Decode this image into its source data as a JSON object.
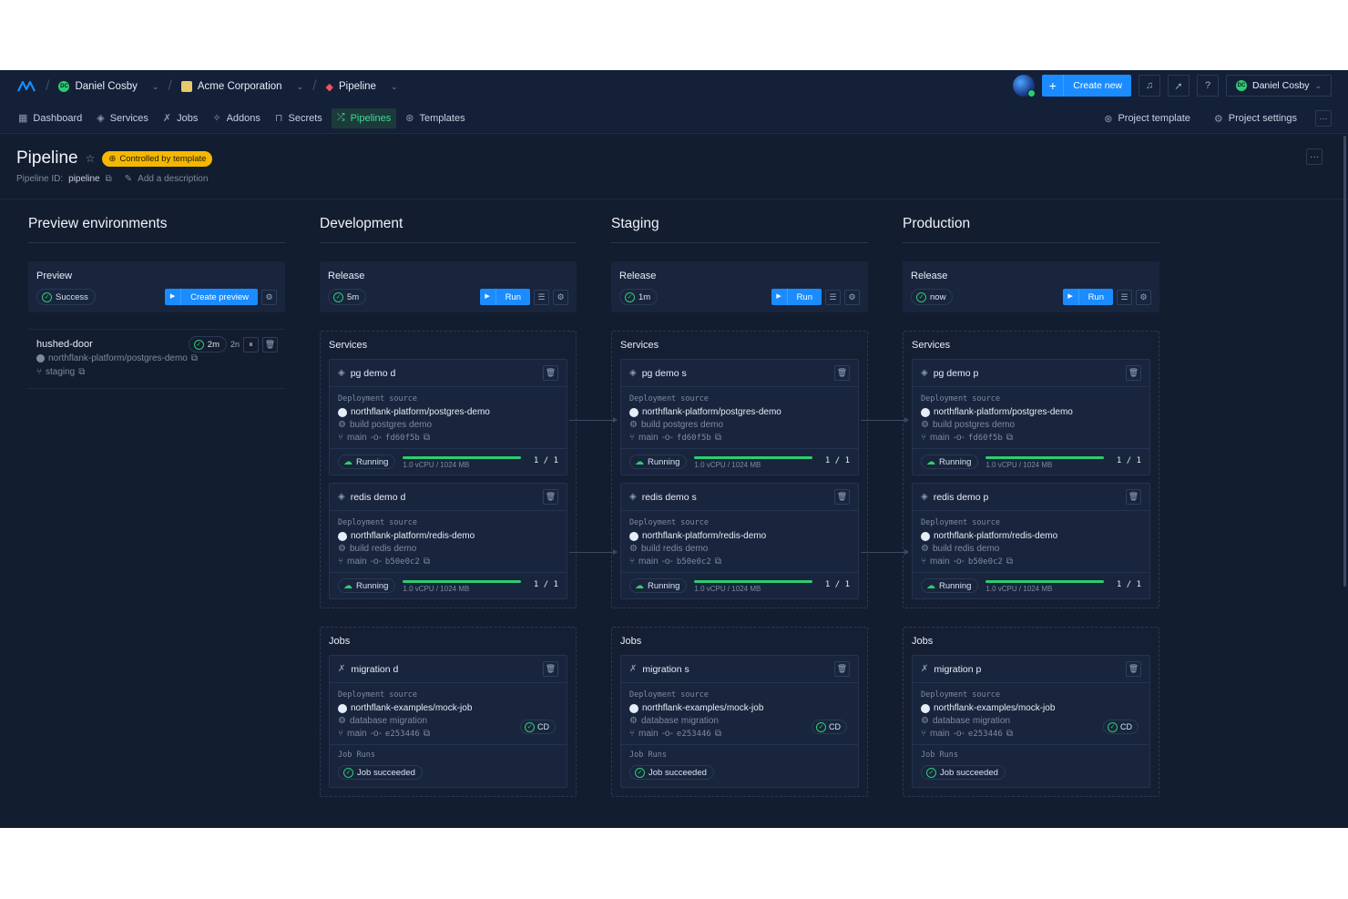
{
  "topbar": {
    "user": "Daniel Cosby",
    "user_initials": "DC",
    "team": "Acme Corporation",
    "project": "Pipeline",
    "create_new": "Create new",
    "account": "Daniel Cosby",
    "brand_color": "#1a8cff"
  },
  "nav": {
    "items": [
      {
        "label": "Dashboard",
        "icon": "grid-icon"
      },
      {
        "label": "Services",
        "icon": "layers-icon"
      },
      {
        "label": "Jobs",
        "icon": "runner-icon"
      },
      {
        "label": "Addons",
        "icon": "puzzle-icon"
      },
      {
        "label": "Secrets",
        "icon": "lock-icon"
      },
      {
        "label": "Pipelines",
        "icon": "shuffle-icon"
      },
      {
        "label": "Templates",
        "icon": "template-icon"
      }
    ],
    "project_template": "Project template",
    "project_settings": "Project settings"
  },
  "header": {
    "title": "Pipeline",
    "badge": "Controlled by template",
    "pipeline_id_label": "Pipeline ID:",
    "pipeline_id": "pipeline",
    "add_description": "Add a description"
  },
  "preview": {
    "title": "Preview environments",
    "release_title": "Preview",
    "status": "Success",
    "create_preview": "Create preview",
    "env": {
      "name": "hushed-door",
      "age": "2m",
      "age2": "2n",
      "repo": "northflank-platform/postgres-demo",
      "branch": "staging"
    }
  },
  "stages": [
    {
      "title": "Development",
      "release_title": "Release",
      "release_age": "5m",
      "run_label": "Run",
      "services_title": "Services",
      "services": [
        {
          "name": "pg demo d",
          "source_label": "Deployment source",
          "repo": "northflank-platform/postgres-demo",
          "build": "build postgres demo",
          "branch": "main",
          "commit": "fd60f5b",
          "status": "Running",
          "resources": "1.0 vCPU / 1024 MB",
          "replicas": "1 / 1",
          "usage": 1.0
        },
        {
          "name": "redis demo d",
          "source_label": "Deployment source",
          "repo": "northflank-platform/redis-demo",
          "build": "build redis demo",
          "branch": "main",
          "commit": "b50e0c2",
          "status": "Running",
          "resources": "1.0 vCPU / 1024 MB",
          "replicas": "1 / 1",
          "usage": 1.0
        }
      ],
      "jobs_title": "Jobs",
      "job": {
        "name": "migration d",
        "source_label": "Deployment source",
        "repo": "northflank-examples/mock-job",
        "build": "database migration",
        "cd": "CD",
        "branch": "main",
        "commit": "e253446",
        "runs_label": "Job Runs",
        "run_status": "Job succeeded"
      }
    },
    {
      "title": "Staging",
      "release_title": "Release",
      "release_age": "1m",
      "run_label": "Run",
      "services_title": "Services",
      "services": [
        {
          "name": "pg demo s",
          "source_label": "Deployment source",
          "repo": "northflank-platform/postgres-demo",
          "build": "build postgres demo",
          "branch": "main",
          "commit": "fd60f5b",
          "status": "Running",
          "resources": "1.0 vCPU / 1024 MB",
          "replicas": "1 / 1",
          "usage": 1.0
        },
        {
          "name": "redis demo s",
          "source_label": "Deployment source",
          "repo": "northflank-platform/redis-demo",
          "build": "build redis demo",
          "branch": "main",
          "commit": "b50e0c2",
          "status": "Running",
          "resources": "1.0 vCPU / 1024 MB",
          "replicas": "1 / 1",
          "usage": 1.0
        }
      ],
      "jobs_title": "Jobs",
      "job": {
        "name": "migration s",
        "source_label": "Deployment source",
        "repo": "northflank-examples/mock-job",
        "build": "database migration",
        "cd": "CD",
        "branch": "main",
        "commit": "e253446",
        "runs_label": "Job Runs",
        "run_status": "Job succeeded"
      }
    },
    {
      "title": "Production",
      "release_title": "Release",
      "release_age": "now",
      "run_label": "Run",
      "services_title": "Services",
      "services": [
        {
          "name": "pg demo p",
          "source_label": "Deployment source",
          "repo": "northflank-platform/postgres-demo",
          "build": "build postgres demo",
          "branch": "main",
          "commit": "fd60f5b",
          "status": "Running",
          "resources": "1.0 vCPU / 1024 MB",
          "replicas": "1 / 1",
          "usage": 1.0
        },
        {
          "name": "redis demo p",
          "source_label": "Deployment source",
          "repo": "northflank-platform/redis-demo",
          "build": "build redis demo",
          "branch": "main",
          "commit": "b50e0c2",
          "status": "Running",
          "resources": "1.0 vCPU / 1024 MB",
          "replicas": "1 / 1",
          "usage": 1.0
        }
      ],
      "jobs_title": "Jobs",
      "job": {
        "name": "migration p",
        "source_label": "Deployment source",
        "repo": "northflank-examples/mock-job",
        "build": "database migration",
        "cd": "CD",
        "branch": "main",
        "commit": "e253446",
        "runs_label": "Job Runs",
        "run_status": "Job succeeded"
      }
    }
  ]
}
